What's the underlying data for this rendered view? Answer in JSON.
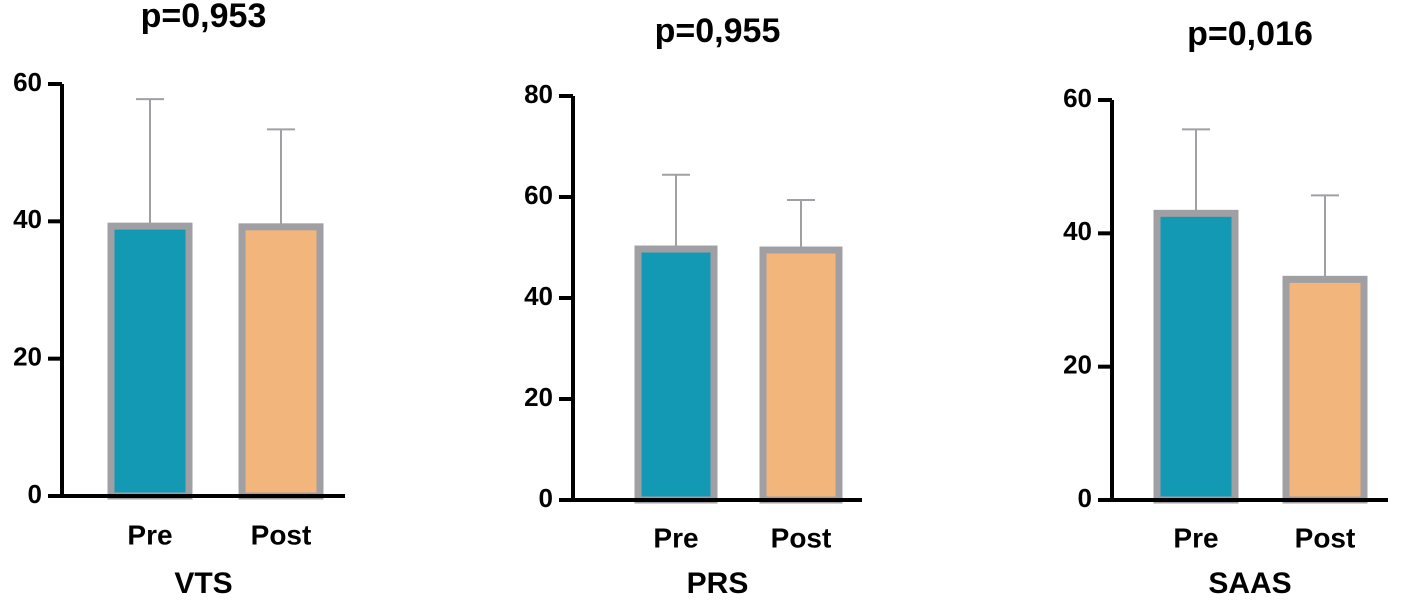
{
  "chart_data": [
    {
      "type": "bar",
      "title": "p=0,953",
      "x_label": "VTS",
      "categories": [
        "Pre",
        "Post"
      ],
      "values": [
        39.3,
        39.2
      ],
      "errors": [
        18.5,
        14.2
      ],
      "colors": [
        "#1399b4",
        "#f2b57c"
      ],
      "edge_color": "#a09fa4",
      "ylim": [
        0,
        60
      ],
      "yticks": [
        0,
        20,
        40,
        60
      ]
    },
    {
      "type": "bar",
      "title": "p=0,955",
      "x_label": "PRS",
      "categories": [
        "Pre",
        "Post"
      ],
      "values": [
        49.7,
        49.5
      ],
      "errors": [
        14.7,
        9.9
      ],
      "colors": [
        "#1399b4",
        "#f2b57c"
      ],
      "edge_color": "#a09fa4",
      "ylim": [
        0,
        80
      ],
      "yticks": [
        0,
        20,
        40,
        60,
        80
      ]
    },
    {
      "type": "bar",
      "title": "p=0,016",
      "x_label": "SAAS",
      "categories": [
        "Pre",
        "Post"
      ],
      "values": [
        43.0,
        33.1
      ],
      "errors": [
        12.6,
        12.6
      ],
      "colors": [
        "#1399b4",
        "#f2b57c"
      ],
      "edge_color": "#a09fa4",
      "ylim": [
        0,
        60
      ],
      "yticks": [
        0,
        20,
        40,
        60
      ]
    }
  ]
}
